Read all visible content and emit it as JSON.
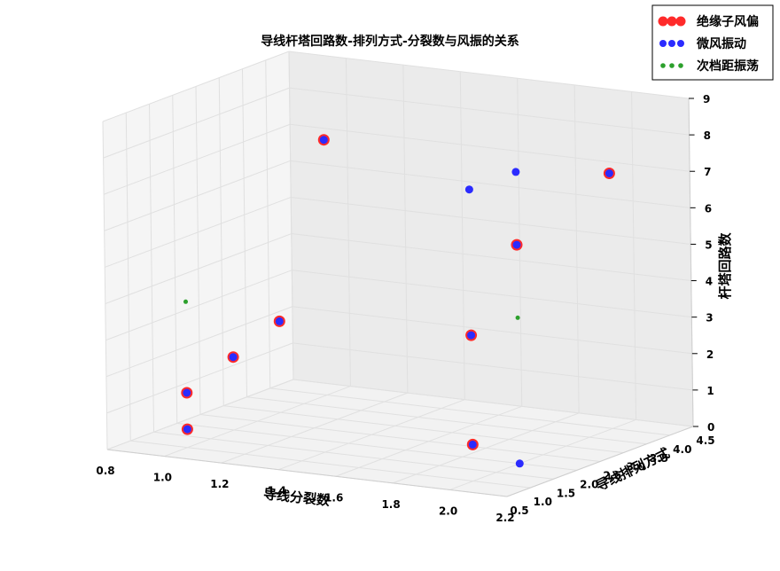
{
  "chart_data": {
    "type": "scatter3d",
    "title": "导线杆塔回路数-排列方式-分裂数与风振的关系",
    "xlabel": "导线分裂数",
    "ylabel": "导线排列方式",
    "zlabel": "杆塔回路数",
    "xlim": [
      0.8,
      2.2
    ],
    "ylim": [
      0.5,
      4.5
    ],
    "zlim": [
      0,
      9
    ],
    "xticks": [
      "0.8",
      "1.0",
      "1.2",
      "1.4",
      "1.6",
      "1.8",
      "2.0",
      "2.2"
    ],
    "yticks": [
      "0.5",
      "1.0",
      "1.5",
      "2.0",
      "2.5",
      "3.0",
      "3.5",
      "4.0",
      "4.5"
    ],
    "zticks": [
      "0",
      "1",
      "2",
      "3",
      "4",
      "5",
      "6",
      "7",
      "8",
      "9"
    ],
    "legend_position": "top-right",
    "series": [
      {
        "name": "绝缘子风偏",
        "color": "#ff2a2a",
        "marker_size": 6.5,
        "points": [
          {
            "x": 1,
            "y": 1,
            "z": 0.5
          },
          {
            "x": 1,
            "y": 1,
            "z": 1.5
          },
          {
            "x": 1,
            "y": 2,
            "z": 2
          },
          {
            "x": 1,
            "y": 3,
            "z": 2.5
          },
          {
            "x": 1,
            "y": 4,
            "z": 7
          },
          {
            "x": 2,
            "y": 1,
            "z": 1
          },
          {
            "x": 2,
            "y": 1,
            "z": 4
          },
          {
            "x": 2,
            "y": 2,
            "z": 6
          },
          {
            "x": 2,
            "y": 4,
            "z": 7
          }
        ]
      },
      {
        "name": "微风振动",
        "color": "#2b2bff",
        "marker_size": 4.5,
        "points": [
          {
            "x": 1,
            "y": 1,
            "z": 0.5
          },
          {
            "x": 1,
            "y": 1,
            "z": 1.5
          },
          {
            "x": 1,
            "y": 2,
            "z": 2
          },
          {
            "x": 1,
            "y": 3,
            "z": 2.5
          },
          {
            "x": 1,
            "y": 4,
            "z": 7
          },
          {
            "x": 2,
            "y": 1,
            "z": 1
          },
          {
            "x": 2,
            "y": 1,
            "z": 4
          },
          {
            "x": 2,
            "y": 2,
            "z": 6
          },
          {
            "x": 2,
            "y": 4,
            "z": 7
          },
          {
            "x": 2,
            "y": 1,
            "z": 8
          },
          {
            "x": 2,
            "y": 2,
            "z": 8
          },
          {
            "x": 2,
            "y": 2,
            "z": 0
          }
        ]
      },
      {
        "name": "次档距振荡",
        "color": "#2ca02c",
        "marker_size": 2.5,
        "points": [
          {
            "x": 1,
            "y": 1,
            "z": 4
          },
          {
            "x": 2,
            "y": 2,
            "z": 4
          }
        ]
      }
    ]
  }
}
